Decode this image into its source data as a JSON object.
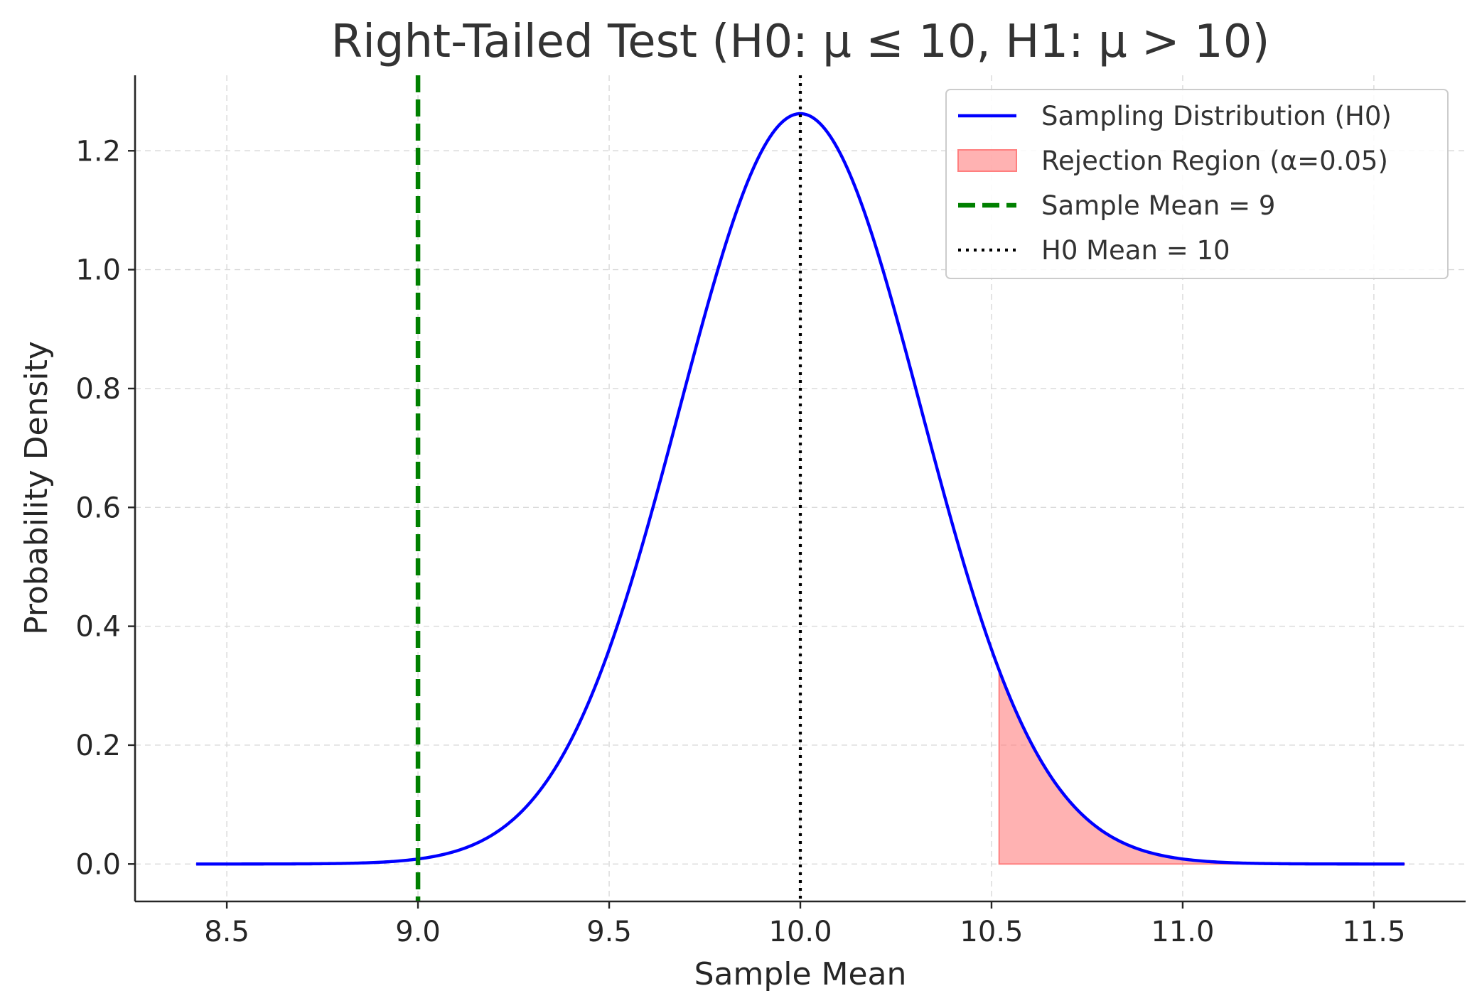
{
  "chart_data": {
    "type": "line",
    "title": "Right-Tailed Test (H0: μ ≤ 10, H1: μ > 10)",
    "xlabel": "Sample Mean",
    "ylabel": "Probability Density",
    "xlim": [
      8.26,
      11.74
    ],
    "ylim": [
      -0.063,
      1.327
    ],
    "xticks": [
      8.5,
      9.0,
      9.5,
      10.0,
      10.5,
      11.0,
      11.5
    ],
    "xtick_labels": [
      "8.5",
      "9.0",
      "9.5",
      "10.0",
      "10.5",
      "11.0",
      "11.5"
    ],
    "yticks": [
      0.0,
      0.2,
      0.4,
      0.6,
      0.8,
      1.0,
      1.2
    ],
    "ytick_labels": [
      "0.0",
      "0.2",
      "0.4",
      "0.6",
      "0.8",
      "1.0",
      "1.2"
    ],
    "grid": true,
    "legend_position": "top-right",
    "distribution": {
      "kind": "normal",
      "mean": 10.0,
      "std": 0.316,
      "x_range": [
        8.42,
        11.58
      ]
    },
    "series": [
      {
        "name": "Sampling Distribution (H0)",
        "kind": "curve",
        "color": "#0000ff",
        "style": "solid"
      },
      {
        "name": "Rejection Region (α=0.05)",
        "kind": "area",
        "color": "#ff7f7f",
        "from": 10.52,
        "to": 11.58
      },
      {
        "name": "Sample Mean = 9",
        "kind": "vline",
        "x": 9.0,
        "color": "#008000",
        "style": "dashed"
      },
      {
        "name": "H0 Mean = 10",
        "kind": "vline",
        "x": 10.0,
        "color": "#000000",
        "style": "dotted"
      }
    ]
  }
}
